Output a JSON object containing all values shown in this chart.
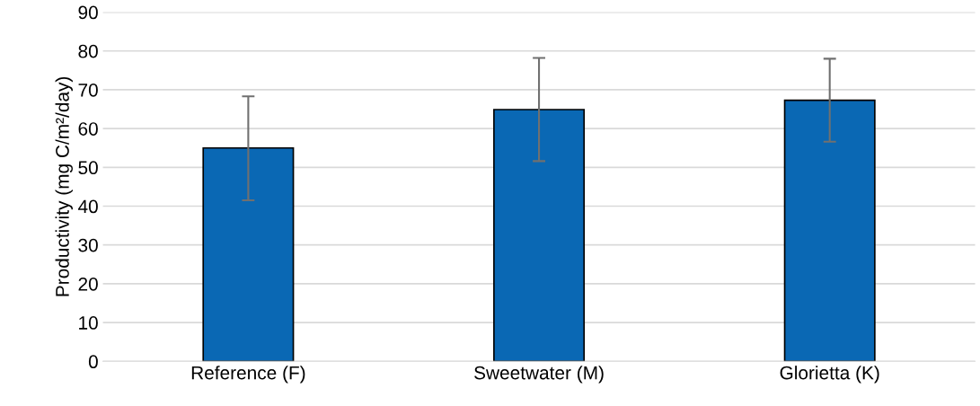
{
  "chart_data": {
    "type": "bar",
    "ylabel": "Productivity (mg C/m²/day)",
    "categories": [
      "Reference (F)",
      "Sweetwater (M)",
      "Glorietta (K)"
    ],
    "values": [
      55,
      64.9,
      67.3
    ],
    "errors": [
      [
        41.5,
        68.3
      ],
      [
        51.6,
        78.2
      ],
      [
        56.6,
        78.0
      ]
    ],
    "color": "#0a68b4",
    "ylim": [
      0,
      90
    ],
    "yticks": [
      0,
      10,
      20,
      30,
      40,
      50,
      60,
      70,
      80,
      90
    ],
    "grid": "y"
  }
}
